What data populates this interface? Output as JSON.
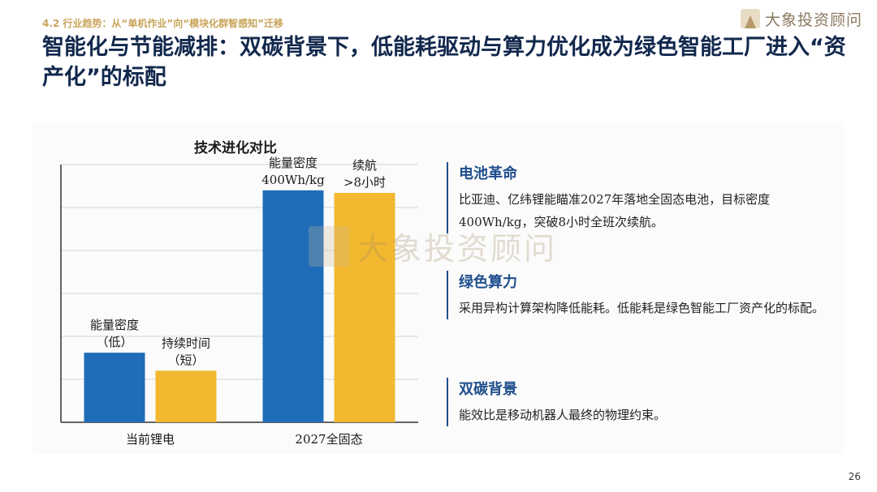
{
  "section_tag": "4.2 行业趋势：从“单机作业”向“模块化群智感知”迁移",
  "logo_text": "大象投资顾问",
  "title": "智能化与节能减排：双碳背景下，低能耗驱动与算力优化成为绿色智能工厂进入“资产化”的标配",
  "watermark_text": "大象投资顾问",
  "chart_data": {
    "type": "bar",
    "title": "技术进化对比",
    "categories": [
      "当前锂电",
      "2027全固态"
    ],
    "series": [
      {
        "name": "能量密度",
        "values": [
          27,
          90
        ],
        "color": "#1f6cb8"
      },
      {
        "name": "续航",
        "values": [
          20,
          89
        ],
        "color": "#f2b830"
      }
    ],
    "bar_labels": [
      [
        "能量密度",
        "（低）"
      ],
      [
        "持续时间",
        "（短）"
      ],
      [
        "能量密度",
        "400Wh/kg"
      ],
      [
        "续航",
        ">8小时"
      ]
    ],
    "ylim": [
      0,
      100
    ],
    "grid": true,
    "legend": "none"
  },
  "features": [
    {
      "heading": "电池革命",
      "text": "比亚迪、亿纬锂能瞄准2027年落地全固态电池，目标密度400Wh/kg，突破8小时全班次续航。"
    },
    {
      "heading": "绿色算力",
      "text": "采用异构计算架构降低能耗。低能耗是绿色智能工厂资产化的标配。"
    },
    {
      "heading": "双碳背景",
      "text": "能效比是移动机器人最终的物理约束。"
    }
  ],
  "page_number": "26"
}
